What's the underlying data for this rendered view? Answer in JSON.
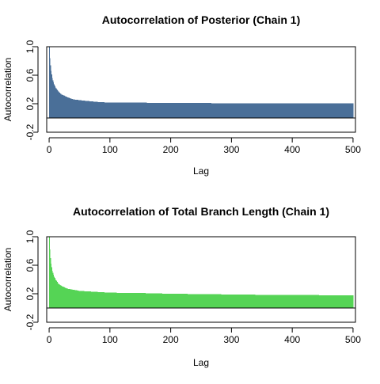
{
  "chart_data": [
    {
      "type": "bar",
      "title": "Autocorrelation of Posterior (Chain 1)",
      "xlabel": "Lag",
      "ylabel": "Autocorrelation",
      "xlim": [
        -4,
        504
      ],
      "ylim": [
        -0.2,
        1.0
      ],
      "xticks": [
        0,
        100,
        200,
        300,
        400,
        500
      ],
      "yticks": [
        -0.2,
        0.2,
        0.6,
        1.0
      ],
      "grid": false,
      "color": "#4a6f98",
      "x": [
        0,
        1,
        2,
        3,
        5,
        8,
        10,
        15,
        20,
        30,
        40,
        50,
        60,
        80,
        100,
        120,
        150,
        200,
        250,
        300,
        350,
        400,
        450,
        500
      ],
      "values": [
        1.0,
        0.84,
        0.74,
        0.66,
        0.56,
        0.47,
        0.43,
        0.37,
        0.33,
        0.29,
        0.26,
        0.25,
        0.24,
        0.225,
        0.215,
        0.215,
        0.215,
        0.21,
        0.21,
        0.205,
        0.205,
        0.205,
        0.205,
        0.205
      ]
    },
    {
      "type": "bar",
      "title": "Autocorrelation of Total Branch Length (Chain 1)",
      "xlabel": "Lag",
      "ylabel": "Autocorrelation",
      "xlim": [
        -4,
        504
      ],
      "ylim": [
        -0.2,
        1.0
      ],
      "xticks": [
        0,
        100,
        200,
        300,
        400,
        500
      ],
      "yticks": [
        -0.2,
        0.2,
        0.6,
        1.0
      ],
      "grid": false,
      "color": "#55d455",
      "x": [
        0,
        1,
        2,
        3,
        5,
        8,
        10,
        15,
        20,
        30,
        40,
        50,
        60,
        80,
        100,
        150,
        200,
        250,
        300,
        350,
        400,
        450,
        500
      ],
      "values": [
        1.0,
        0.82,
        0.7,
        0.62,
        0.52,
        0.44,
        0.4,
        0.34,
        0.31,
        0.27,
        0.255,
        0.24,
        0.235,
        0.225,
        0.215,
        0.21,
        0.2,
        0.195,
        0.19,
        0.185,
        0.185,
        0.18,
        0.18
      ]
    }
  ]
}
